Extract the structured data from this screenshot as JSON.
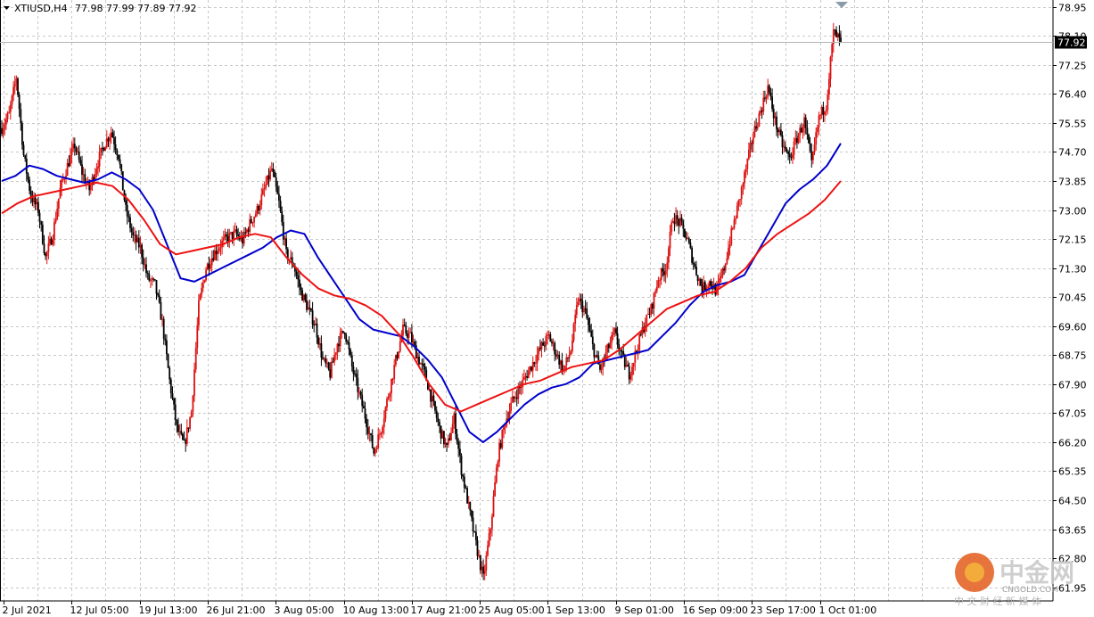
{
  "header": {
    "symbol": "XTIUSD,H4",
    "ohlc": "77.98 77.99 77.89 77.92"
  },
  "price_tag": "77.92",
  "watermark": {
    "brand": "中金网",
    "site": "CNGOLD.COM",
    "tagline": "中 文 财 经 新 媒 体"
  },
  "colors": {
    "bull": "#dd1111",
    "bear": "#000000",
    "ma_fast": "#0000cc",
    "ma_slow": "#ee1111",
    "grid": "#c8c8c8",
    "price_tag_bg": "#000000"
  },
  "chart_data": {
    "type": "candlestick",
    "ylim": [
      61.55,
      79.15
    ],
    "y_ticks": [
      "78.95",
      "78.10",
      "77.25",
      "76.40",
      "75.55",
      "74.70",
      "73.85",
      "73.00",
      "72.15",
      "71.30",
      "70.45",
      "69.60",
      "68.75",
      "67.90",
      "67.05",
      "66.20",
      "65.35",
      "64.50",
      "63.65",
      "62.80",
      "61.95"
    ],
    "x_ticks": [
      "2 Jul 2021",
      "12 Jul 05:00",
      "19 Jul 13:00",
      "26 Jul 21:00",
      "3 Aug 05:00",
      "10 Aug 13:00",
      "17 Aug 21:00",
      "25 Aug 05:00",
      "1 Sep 13:00",
      "9 Sep 01:00",
      "16 Sep 09:00",
      "23 Sep 17:00",
      "1 Oct 01:00"
    ],
    "close_path": [
      75.4,
      75.8,
      76.9,
      74.6,
      73.4,
      73.0,
      71.6,
      72.3,
      73.6,
      74.3,
      74.9,
      74.1,
      73.6,
      74.3,
      74.9,
      75.3,
      74.6,
      73.0,
      72.2,
      71.9,
      71.0,
      70.8,
      69.7,
      68.0,
      66.6,
      66.1,
      67.1,
      70.2,
      71.3,
      71.7,
      72.0,
      72.2,
      72.3,
      72.1,
      72.6,
      73.0,
      73.6,
      74.2,
      73.2,
      71.7,
      71.4,
      70.6,
      70.1,
      69.6,
      68.6,
      68.2,
      69.1,
      69.5,
      68.4,
      67.6,
      66.8,
      65.9,
      66.6,
      67.6,
      68.6,
      69.5,
      69.3,
      68.7,
      68.2,
      67.4,
      66.6,
      66.0,
      66.9,
      65.4,
      64.3,
      63.2,
      62.2,
      63.7,
      65.8,
      66.8,
      67.4,
      67.8,
      68.2,
      68.6,
      69.0,
      69.3,
      68.8,
      68.3,
      68.9,
      70.4,
      70.0,
      69.0,
      68.3,
      68.9,
      69.4,
      68.7,
      68.2,
      68.9,
      69.6,
      70.1,
      71.0,
      71.3,
      72.8,
      72.6,
      72.1,
      71.3,
      70.7,
      70.9,
      70.6,
      71.3,
      72.3,
      73.2,
      74.2,
      75.2,
      75.9,
      76.6,
      75.6,
      74.9,
      74.5,
      75.1,
      75.6,
      74.3,
      75.7,
      76.1,
      78.2,
      77.92
    ],
    "series": [
      {
        "name": "",
        "role": "ma_fast",
        "values": [
          73.85,
          74.0,
          74.3,
          74.2,
          74.0,
          73.9,
          73.8,
          73.9,
          74.1,
          73.9,
          73.6,
          73.0,
          72.0,
          71.0,
          70.9,
          71.1,
          71.3,
          71.5,
          71.7,
          71.9,
          72.2,
          72.4,
          72.3,
          71.6,
          71.0,
          70.4,
          69.8,
          69.5,
          69.4,
          69.3,
          69.0,
          68.6,
          68.1,
          67.3,
          66.5,
          66.2,
          66.5,
          66.9,
          67.3,
          67.6,
          67.8,
          67.9,
          68.1,
          68.5,
          68.6,
          68.7,
          68.8,
          68.9,
          69.3,
          69.7,
          70.2,
          70.6,
          70.8,
          70.9,
          71.1,
          71.8,
          72.5,
          73.2,
          73.6,
          73.9,
          74.3,
          74.95
        ]
      },
      {
        "name": "",
        "role": "ma_slow",
        "values": [
          72.9,
          73.2,
          73.4,
          73.5,
          73.6,
          73.7,
          73.8,
          73.7,
          73.3,
          72.7,
          72.0,
          71.7,
          71.8,
          71.9,
          72.0,
          72.2,
          72.3,
          72.2,
          71.6,
          71.1,
          70.7,
          70.5,
          70.4,
          70.2,
          69.9,
          69.4,
          68.7,
          67.9,
          67.3,
          67.1,
          67.3,
          67.5,
          67.7,
          67.9,
          68.0,
          68.2,
          68.4,
          68.5,
          68.6,
          68.9,
          69.3,
          69.7,
          70.1,
          70.3,
          70.5,
          70.6,
          70.9,
          71.3,
          71.9,
          72.3,
          72.6,
          72.9,
          73.3,
          73.85
        ]
      }
    ]
  }
}
